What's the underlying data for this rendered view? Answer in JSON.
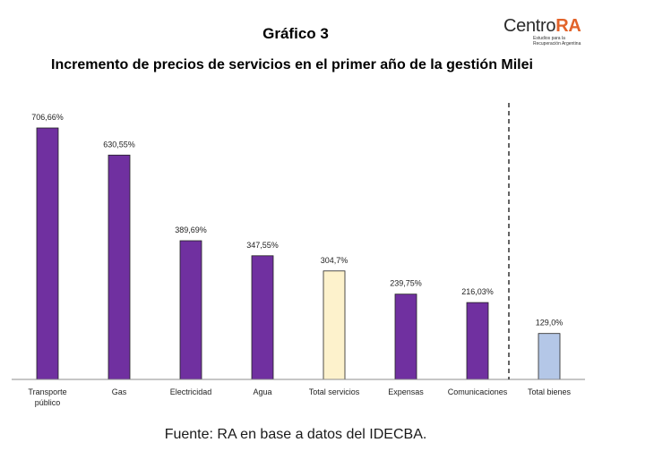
{
  "header": {
    "chart_number": "Gráfico 3",
    "title": "Incremento de precios de servicios en el primer año de la gestión Milei"
  },
  "logo": {
    "centro": "Centro",
    "ra": "RA",
    "tagline_line1": "Estudios para la",
    "tagline_line2": "Recuperación Argentina"
  },
  "source": "Fuente: RA en base a datos del IDECBA.",
  "colors": {
    "services": "#7030a0",
    "total_services": "#fdf2cc",
    "total_goods": "#b4c7e7",
    "logo_accent": "#e2632a"
  },
  "chart_data": {
    "type": "bar",
    "categories": [
      "Transporte público",
      "Gas",
      "Electricidad",
      "Agua",
      "Total servicios",
      "Expensas",
      "Comunicaciones",
      "Total bienes"
    ],
    "category_lines": [
      [
        "Transporte",
        "público"
      ],
      [
        "Gas"
      ],
      [
        "Electricidad"
      ],
      [
        "Agua"
      ],
      [
        "Total servicios"
      ],
      [
        "Expensas"
      ],
      [
        "Comunicaciones"
      ],
      [
        "Total bienes"
      ]
    ],
    "values": [
      706.66,
      630.55,
      389.69,
      347.55,
      304.7,
      239.75,
      216.03,
      129.0
    ],
    "data_labels": [
      "706,66%",
      "630,55%",
      "389,69%",
      "347,55%",
      "304,7%",
      "239,75%",
      "216,03%",
      "129,0%"
    ],
    "bar_colors": [
      "#7030a0",
      "#7030a0",
      "#7030a0",
      "#7030a0",
      "#fdf2cc",
      "#7030a0",
      "#7030a0",
      "#b4c7e7"
    ],
    "ylim": [
      0,
      706.66
    ],
    "y_axis_visible": false,
    "grid": false,
    "separator": "dashed line before Total bienes"
  }
}
